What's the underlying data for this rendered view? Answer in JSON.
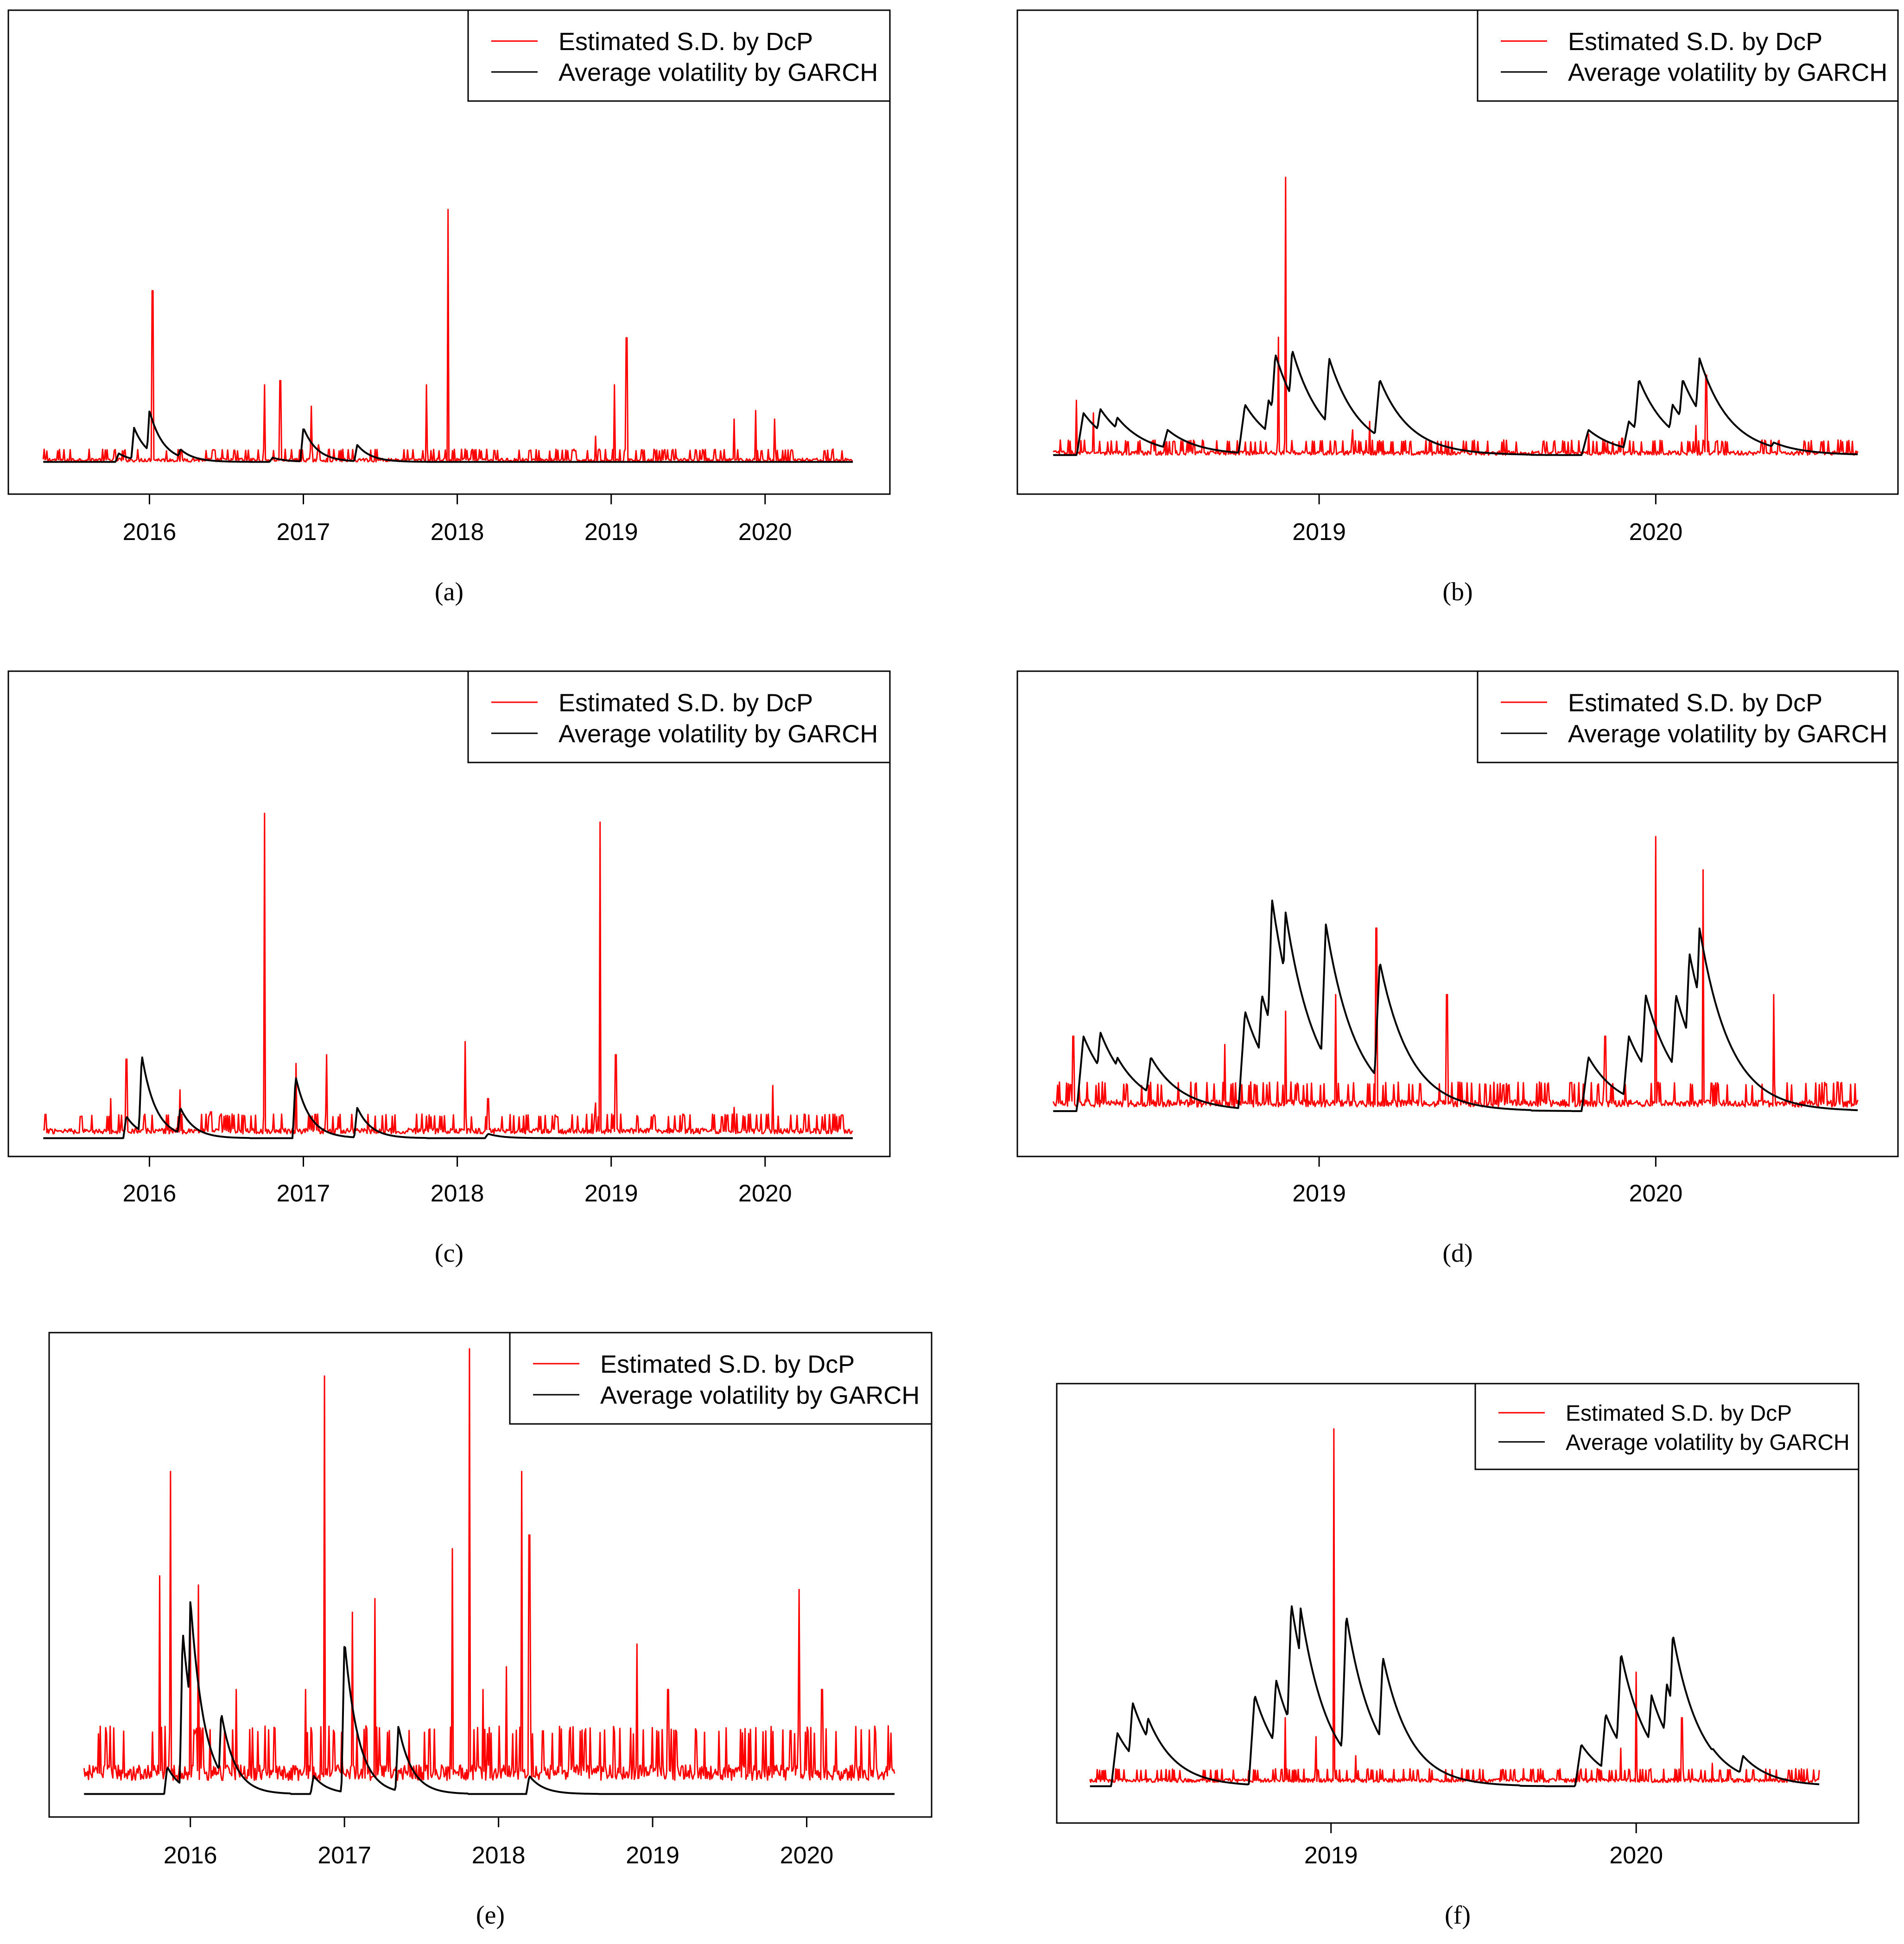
{
  "panels": [
    {
      "id": "a",
      "caption": "(a)",
      "legend": [
        "Estimated S.D. by DcP",
        "Average volatility by GARCH"
      ],
      "colors": {
        "dcp": "#ff0000",
        "garch": "#000000"
      },
      "chart_data": {
        "type": "line",
        "x_ticks": [
          "2016",
          "2017",
          "2018",
          "2019",
          "2020"
        ],
        "xlim": [
          2015.3,
          2020.6
        ],
        "ylim": [
          0,
          1
        ],
        "grid": false,
        "legend_position": "top-right",
        "series": [
          {
            "name": "Estimated S.D. by DcP",
            "color": "#ff0000",
            "baseline": 0.02,
            "noise": 0.01,
            "spikes": [
              [
                2016.02,
                0.42
              ],
              [
                2016.75,
                0.2
              ],
              [
                2016.85,
                0.21
              ],
              [
                2017.05,
                0.15
              ],
              [
                2017.1,
                0.06
              ],
              [
                2017.8,
                0.2
              ],
              [
                2017.94,
                0.61
              ],
              [
                2018.05,
                0.05
              ],
              [
                2018.1,
                0.04
              ],
              [
                2018.9,
                0.08
              ],
              [
                2019.02,
                0.2
              ],
              [
                2019.1,
                0.31
              ],
              [
                2019.8,
                0.12
              ],
              [
                2019.94,
                0.14
              ],
              [
                2020.06,
                0.12
              ]
            ]
          },
          {
            "name": "Average volatility by GARCH",
            "color": "#000000",
            "baseline": 0.02,
            "bumps": [
              [
                2015.8,
                0.04
              ],
              [
                2015.9,
                0.1
              ],
              [
                2016.0,
                0.14
              ],
              [
                2016.2,
                0.05
              ],
              [
                2016.8,
                0.03
              ],
              [
                2017.0,
                0.1
              ],
              [
                2017.35,
                0.06
              ],
              [
                2018.1,
                0.02
              ]
            ]
          }
        ]
      }
    },
    {
      "id": "b",
      "caption": "(b)",
      "legend": [
        "Estimated S.D. by DcP",
        "Average volatility by GARCH"
      ],
      "colors": {
        "dcp": "#ff0000",
        "garch": "#000000"
      },
      "chart_data": {
        "type": "line",
        "x_ticks": [
          "2019",
          "2020"
        ],
        "xlim": [
          2018.2,
          2020.63
        ],
        "ylim": [
          0,
          1
        ],
        "grid": false,
        "legend_position": "top-right",
        "series": [
          {
            "name": "Estimated S.D. by DcP",
            "color": "#ff0000",
            "baseline": 0.02,
            "noise": 0.012,
            "spikes": [
              [
                2018.28,
                0.15
              ],
              [
                2018.33,
                0.12
              ],
              [
                2018.88,
                0.3
              ],
              [
                2018.9,
                0.68
              ],
              [
                2019.1,
                0.08
              ],
              [
                2019.15,
                0.1
              ],
              [
                2019.8,
                0.07
              ],
              [
                2019.9,
                0.06
              ],
              [
                2020.12,
                0.09
              ],
              [
                2020.15,
                0.21
              ],
              [
                2020.2,
                0.05
              ]
            ]
          },
          {
            "name": "Average volatility by GARCH",
            "color": "#000000",
            "baseline": 0.02,
            "bumps": [
              [
                2018.3,
                0.12
              ],
              [
                2018.35,
                0.13
              ],
              [
                2018.4,
                0.11
              ],
              [
                2018.42,
                0.08
              ],
              [
                2018.55,
                0.08
              ],
              [
                2018.78,
                0.14
              ],
              [
                2018.8,
                0.08
              ],
              [
                2018.85,
                0.15
              ],
              [
                2018.87,
                0.26
              ],
              [
                2018.92,
                0.27
              ],
              [
                2019.03,
                0.25
              ],
              [
                2019.1,
                0.05
              ],
              [
                2019.18,
                0.2
              ],
              [
                2019.3,
                0.04
              ],
              [
                2019.8,
                0.08
              ],
              [
                2019.92,
                0.1
              ],
              [
                2019.95,
                0.2
              ],
              [
                2020.05,
                0.14
              ],
              [
                2020.08,
                0.2
              ],
              [
                2020.13,
                0.25
              ],
              [
                2020.25,
                0.07
              ],
              [
                2020.35,
                0.05
              ]
            ]
          }
        ]
      }
    },
    {
      "id": "c",
      "caption": "(c)",
      "legend": [
        "Estimated S.D. by DcP",
        "Average volatility by GARCH"
      ],
      "colors": {
        "dcp": "#ff0000",
        "garch": "#000000"
      },
      "chart_data": {
        "type": "line",
        "x_ticks": [
          "2016",
          "2017",
          "2018",
          "2019",
          "2020"
        ],
        "xlim": [
          2015.3,
          2020.6
        ],
        "ylim": [
          0,
          1
        ],
        "grid": false,
        "legend_position": "top-right",
        "series": [
          {
            "name": "Estimated S.D. by DcP",
            "color": "#ff0000",
            "baseline": 0.02,
            "noise": 0.015,
            "spikes": [
              [
                2015.75,
                0.1
              ],
              [
                2015.85,
                0.19
              ],
              [
                2016.2,
                0.12
              ],
              [
                2016.4,
                0.07
              ],
              [
                2016.75,
                0.75
              ],
              [
                2016.95,
                0.18
              ],
              [
                2017.15,
                0.2
              ],
              [
                2017.8,
                0.06
              ],
              [
                2018.05,
                0.23
              ],
              [
                2018.2,
                0.1
              ],
              [
                2018.9,
                0.09
              ],
              [
                2018.93,
                0.73
              ],
              [
                2019.03,
                0.2
              ],
              [
                2019.8,
                0.08
              ],
              [
                2020.05,
                0.13
              ]
            ]
          },
          {
            "name": "Average volatility by GARCH",
            "color": "#000000",
            "baseline": 0.01,
            "bumps": [
              [
                2015.85,
                0.06
              ],
              [
                2015.95,
                0.2
              ],
              [
                2016.2,
                0.08
              ],
              [
                2016.95,
                0.15
              ],
              [
                2017.35,
                0.08
              ],
              [
                2018.2,
                0.02
              ]
            ]
          }
        ]
      }
    },
    {
      "id": "d",
      "caption": "(d)",
      "legend": [
        "Estimated S.D. by DcP",
        "Average volatility by GARCH"
      ],
      "colors": {
        "dcp": "#ff0000",
        "garch": "#000000"
      },
      "chart_data": {
        "type": "line",
        "x_ticks": [
          "2019",
          "2020"
        ],
        "xlim": [
          2018.2,
          2020.63
        ],
        "ylim": [
          0,
          1
        ],
        "grid": false,
        "legend_position": "top-right",
        "series": [
          {
            "name": "Estimated S.D. by DcP",
            "color": "#ff0000",
            "baseline": 0.03,
            "noise": 0.02,
            "spikes": [
              [
                2018.27,
                0.2
              ],
              [
                2018.72,
                0.18
              ],
              [
                2018.9,
                0.26
              ],
              [
                2019.05,
                0.3
              ],
              [
                2019.17,
                0.46
              ],
              [
                2019.38,
                0.3
              ],
              [
                2019.85,
                0.2
              ],
              [
                2020.0,
                0.68
              ],
              [
                2020.14,
                0.6
              ],
              [
                2020.35,
                0.3
              ]
            ]
          },
          {
            "name": "Average volatility by GARCH",
            "color": "#000000",
            "baseline": 0.02,
            "bumps": [
              [
                2018.3,
                0.2
              ],
              [
                2018.35,
                0.21
              ],
              [
                2018.4,
                0.15
              ],
              [
                2018.5,
                0.15
              ],
              [
                2018.78,
                0.26
              ],
              [
                2018.83,
                0.3
              ],
              [
                2018.86,
                0.53
              ],
              [
                2018.9,
                0.5
              ],
              [
                2019.02,
                0.47
              ],
              [
                2019.18,
                0.38
              ],
              [
                2019.25,
                0.1
              ],
              [
                2019.3,
                0.07
              ],
              [
                2019.8,
                0.15
              ],
              [
                2019.92,
                0.2
              ],
              [
                2019.97,
                0.3
              ],
              [
                2020.06,
                0.3
              ],
              [
                2020.1,
                0.4
              ],
              [
                2020.13,
                0.46
              ],
              [
                2020.25,
                0.12
              ],
              [
                2020.3,
                0.08
              ]
            ]
          }
        ]
      }
    },
    {
      "id": "e",
      "caption": "(e)",
      "legend": [
        "Estimated S.D. by DcP",
        "Average volatility by GARCH"
      ],
      "colors": {
        "dcp": "#ff0000",
        "garch": "#000000"
      },
      "chart_data": {
        "type": "line",
        "x_ticks": [
          "2016",
          "2017",
          "2018",
          "2019",
          "2020"
        ],
        "xlim": [
          2015.3,
          2020.6
        ],
        "ylim": [
          0,
          1
        ],
        "grid": false,
        "legend_position": "top-right",
        "series": [
          {
            "name": "Estimated S.D. by DcP",
            "color": "#ff0000",
            "baseline": 0.05,
            "noise": 0.04,
            "spikes": [
              [
                2015.8,
                0.5
              ],
              [
                2015.87,
                0.73
              ],
              [
                2016.0,
                0.4
              ],
              [
                2016.05,
                0.48
              ],
              [
                2016.3,
                0.25
              ],
              [
                2016.75,
                0.25
              ],
              [
                2016.87,
                0.94
              ],
              [
                2017.05,
                0.42
              ],
              [
                2017.2,
                0.45
              ],
              [
                2017.7,
                0.56
              ],
              [
                2017.81,
                1.0
              ],
              [
                2017.9,
                0.25
              ],
              [
                2018.05,
                0.3
              ],
              [
                2018.15,
                0.73
              ],
              [
                2018.2,
                0.59
              ],
              [
                2018.9,
                0.35
              ],
              [
                2019.1,
                0.25
              ],
              [
                2019.95,
                0.47
              ],
              [
                2020.1,
                0.25
              ]
            ]
          },
          {
            "name": "Average volatility by GARCH",
            "color": "#000000",
            "baseline": 0.02,
            "bumps": [
              [
                2015.85,
                0.08
              ],
              [
                2015.95,
                0.38
              ],
              [
                2016.0,
                0.45
              ],
              [
                2016.2,
                0.2
              ],
              [
                2016.8,
                0.06
              ],
              [
                2017.0,
                0.36
              ],
              [
                2017.35,
                0.17
              ],
              [
                2018.2,
                0.06
              ],
              [
                2018.9,
                0.02
              ]
            ]
          }
        ]
      }
    },
    {
      "id": "f",
      "caption": "(f)",
      "legend": [
        "Estimated S.D. by DcP",
        "Average volatility by GARCH"
      ],
      "colors": {
        "dcp": "#ff0000",
        "garch": "#000000"
      },
      "chart_data": {
        "type": "line",
        "x_ticks": [
          "2019",
          "2020"
        ],
        "xlim": [
          2018.2,
          2020.63
        ],
        "ylim": [
          0,
          1
        ],
        "grid": false,
        "legend_position": "top-right",
        "series": [
          {
            "name": "Estimated S.D. by DcP",
            "color": "#ff0000",
            "baseline": 0.03,
            "noise": 0.012,
            "spikes": [
              [
                2018.85,
                0.2
              ],
              [
                2018.95,
                0.15
              ],
              [
                2019.01,
                0.96
              ],
              [
                2019.08,
                0.1
              ],
              [
                2019.15,
                0.06
              ],
              [
                2019.95,
                0.12
              ],
              [
                2020.0,
                0.32
              ],
              [
                2020.15,
                0.2
              ],
              [
                2020.25,
                0.08
              ]
            ]
          },
          {
            "name": "Average volatility by GARCH",
            "color": "#000000",
            "baseline": 0.02,
            "bumps": [
              [
                2018.3,
                0.16
              ],
              [
                2018.35,
                0.24
              ],
              [
                2018.4,
                0.2
              ],
              [
                2018.45,
                0.12
              ],
              [
                2018.75,
                0.26
              ],
              [
                2018.82,
                0.3
              ],
              [
                2018.87,
                0.5
              ],
              [
                2018.9,
                0.49
              ],
              [
                2019.05,
                0.47
              ],
              [
                2019.17,
                0.36
              ],
              [
                2019.25,
                0.08
              ],
              [
                2019.82,
                0.13
              ],
              [
                2019.9,
                0.21
              ],
              [
                2019.95,
                0.37
              ],
              [
                2020.05,
                0.26
              ],
              [
                2020.1,
                0.29
              ],
              [
                2020.12,
                0.42
              ],
              [
                2020.25,
                0.12
              ],
              [
                2020.35,
                0.1
              ]
            ]
          }
        ]
      }
    }
  ]
}
